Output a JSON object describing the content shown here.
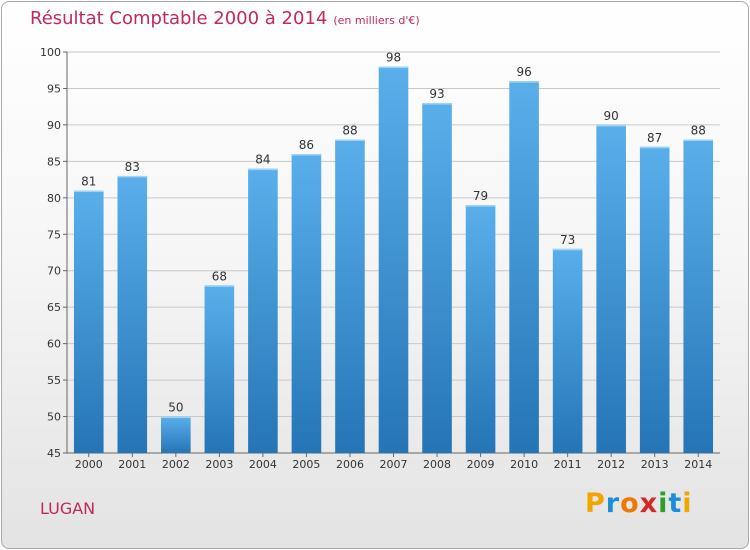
{
  "title": "Résultat Comptable 2000 à 2014",
  "subtitle": "(en milliers d'€)",
  "location": "LUGAN",
  "logo": {
    "letters": [
      "P",
      "r",
      "o",
      "x",
      "i",
      "t",
      "i"
    ],
    "colors": [
      "#f0a500",
      "#1a8fd8",
      "#f07800",
      "#d62828",
      "#2aa02a",
      "#1a8fd8",
      "#f0a500"
    ]
  },
  "colors": {
    "title": "#c3285a",
    "bar_top": "#5aafeb",
    "bar_bottom": "#2575b6",
    "grid": "#c8c8c8"
  },
  "chart_data": {
    "type": "bar",
    "title": "Résultat Comptable 2000 à 2014",
    "subtitle": "(en milliers d'€)",
    "categories": [
      "2000",
      "2001",
      "2002",
      "2003",
      "2004",
      "2005",
      "2006",
      "2007",
      "2008",
      "2009",
      "2010",
      "2011",
      "2012",
      "2013",
      "2014"
    ],
    "values": [
      81,
      83,
      50,
      68,
      84,
      86,
      88,
      98,
      93,
      79,
      96,
      73,
      90,
      87,
      88
    ],
    "ylim": [
      45,
      100
    ],
    "yticks": [
      45,
      50,
      55,
      60,
      65,
      70,
      75,
      80,
      85,
      90,
      95,
      100
    ],
    "grid": true,
    "xlabel": "",
    "ylabel": ""
  }
}
